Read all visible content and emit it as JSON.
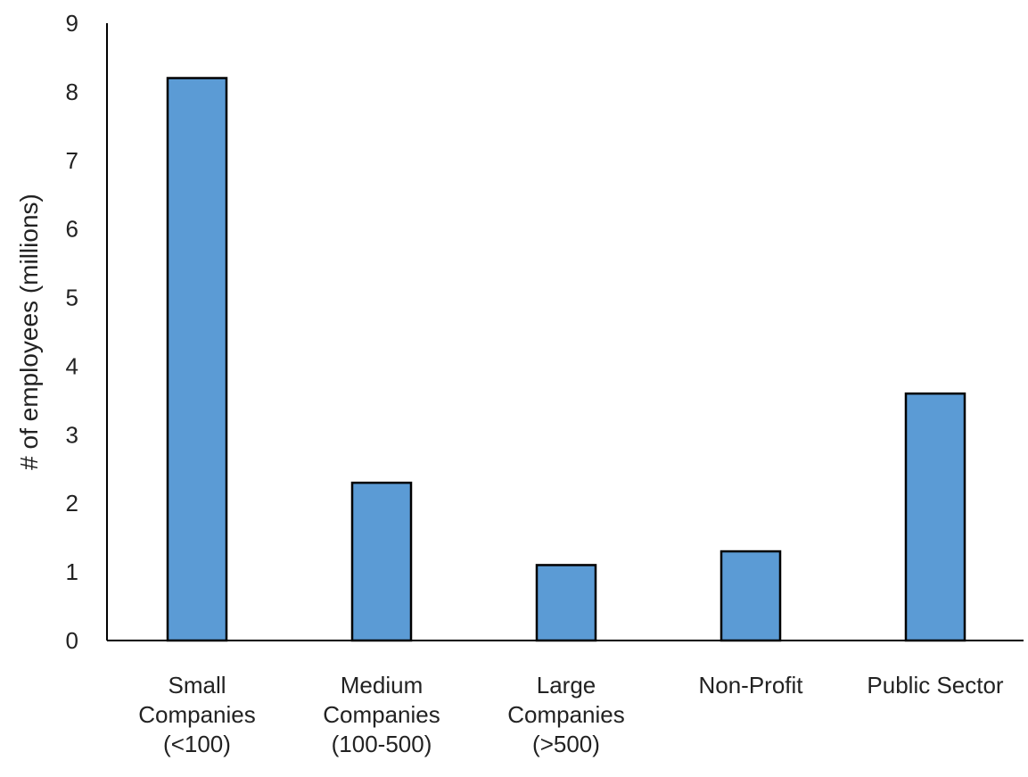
{
  "chart_data": {
    "type": "bar",
    "title": "",
    "xlabel": "",
    "ylabel": "# of employees (millions)",
    "ylim": [
      0,
      9
    ],
    "yticks": [
      "0",
      "1",
      "2",
      "3",
      "4",
      "5",
      "6",
      "7",
      "8",
      "9"
    ],
    "grid": false,
    "legend": "none",
    "categories": [
      [
        "Small",
        "Companies",
        "(<100)"
      ],
      [
        "Medium",
        "Companies",
        "(100-500)"
      ],
      [
        "Large",
        "Companies",
        "(>500)"
      ],
      [
        "Non-Profit"
      ],
      [
        "Public Sector"
      ]
    ],
    "values": [
      8.2,
      2.3,
      1.1,
      1.3,
      3.6
    ],
    "colors": {
      "bar_fill": "#5b9bd5",
      "bar_stroke": "#000000",
      "axis": "#000000",
      "text": "#222222"
    }
  }
}
